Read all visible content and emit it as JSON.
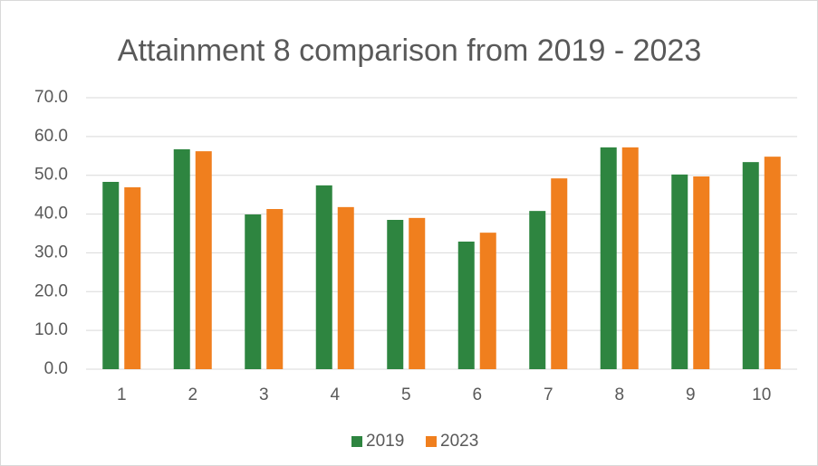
{
  "chart_data": {
    "type": "bar",
    "title": "Attainment 8 comparison from 2019 - 2023",
    "categories": [
      "1",
      "2",
      "3",
      "4",
      "5",
      "6",
      "7",
      "8",
      "9",
      "10"
    ],
    "series": [
      {
        "name": "2019",
        "color": "#2e8540",
        "values": [
          48.3,
          56.7,
          39.9,
          47.4,
          38.5,
          32.9,
          40.8,
          57.2,
          50.2,
          53.4
        ]
      },
      {
        "name": "2023",
        "color": "#f07f1e",
        "values": [
          46.9,
          56.2,
          41.3,
          41.8,
          39.0,
          35.2,
          49.2,
          57.2,
          49.7,
          54.8
        ]
      }
    ],
    "ylim": [
      0,
      70
    ],
    "yticks": [
      {
        "value": 0,
        "label": "0.0"
      },
      {
        "value": 10,
        "label": "10.0"
      },
      {
        "value": 20,
        "label": "20.0"
      },
      {
        "value": 30,
        "label": "30.0"
      },
      {
        "value": 40,
        "label": "40.0"
      },
      {
        "value": 50,
        "label": "50.0"
      },
      {
        "value": 60,
        "label": "60.0"
      },
      {
        "value": 70,
        "label": "70.0"
      }
    ],
    "grid": true,
    "legend": "bottom"
  }
}
